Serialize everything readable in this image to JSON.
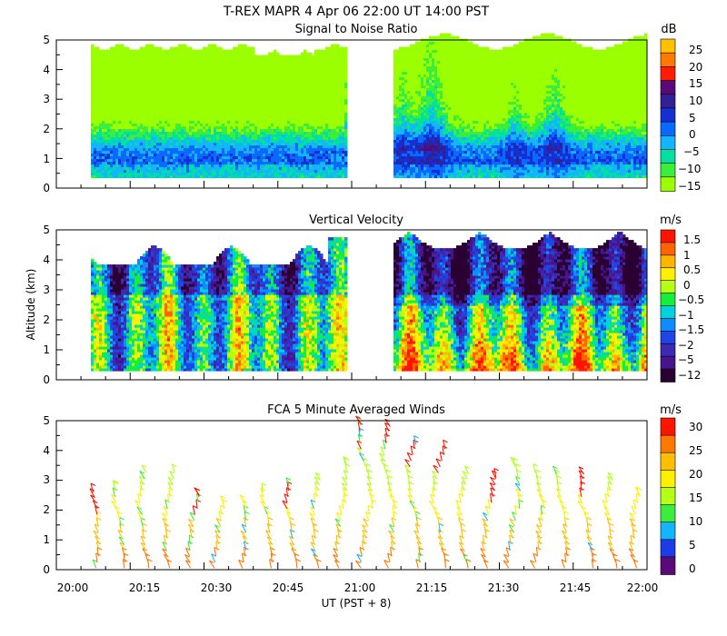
{
  "figure": {
    "title": "T-REX   MAPR   4 Apr 06   22:00 UT   14:00   PST"
  },
  "palette": {
    "snr": [
      "#9cff00",
      "#3cee3c",
      "#00e0a0",
      "#14b4ff",
      "#0a6aff",
      "#1430d2",
      "#322096",
      "#5a0a78",
      "#ff1e00",
      "#ff7800",
      "#ffc000"
    ],
    "velocity": [
      "#2a0032",
      "#46148c",
      "#3c2ab4",
      "#1e46e6",
      "#0f8cff",
      "#00d2dc",
      "#16ee3c",
      "#b4ff14",
      "#fff000",
      "#ffb400",
      "#ff6400",
      "#ff1400"
    ],
    "wind": [
      "#5a0a78",
      "#1e3ce6",
      "#14b4ff",
      "#3cee3c",
      "#b4ff14",
      "#fff000",
      "#ffbe00",
      "#ff7800",
      "#ff1400"
    ]
  },
  "chart_data": [
    {
      "id": "snr",
      "type": "heatmap",
      "title": "Signal to Noise Ratio",
      "xlabel": "",
      "ylabel": "",
      "xlim": [
        "20:00",
        "22:00"
      ],
      "ylim": [
        0,
        5
      ],
      "yticks": [
        "0",
        "1",
        "2",
        "3",
        "4",
        "5"
      ],
      "data_gap": [
        "20:59",
        "21:08"
      ],
      "colorbar": {
        "unit": "dB",
        "ticks": [
          "25",
          "20",
          "15",
          "10",
          "5",
          "0",
          "−5",
          "−10",
          "−15"
        ]
      }
    },
    {
      "id": "velocity",
      "type": "heatmap",
      "title": "Vertical Velocity",
      "xlabel": "",
      "ylabel": "Altitude (km)",
      "xlim": [
        "20:00",
        "22:00"
      ],
      "ylim": [
        0,
        5
      ],
      "yticks": [
        "0",
        "1",
        "2",
        "3",
        "4",
        "5"
      ],
      "data_gap": [
        "20:59",
        "21:08"
      ],
      "colorbar": {
        "unit": "m/s",
        "ticks": [
          "1.5",
          "1",
          "0.5",
          "0",
          "−0.5",
          "−1",
          "−1.5",
          "−2",
          "−5",
          "−12"
        ]
      }
    },
    {
      "id": "winds",
      "type": "scatter",
      "title": "FCA 5 Minute Averaged Winds",
      "xlabel": "UT  (PST + 8)",
      "ylabel": "",
      "xlim": [
        "20:00",
        "22:00"
      ],
      "ylim": [
        0,
        5
      ],
      "yticks": [
        "0",
        "1",
        "2",
        "3",
        "4",
        "5"
      ],
      "xticks": [
        "20:00",
        "20:15",
        "20:30",
        "20:45",
        "21:00",
        "21:15",
        "21:30",
        "21:45",
        "22:00"
      ],
      "barb_times_min": [
        8,
        13,
        18,
        23,
        28,
        33,
        38,
        43,
        48,
        53,
        58,
        63,
        68,
        73,
        78,
        83,
        88,
        93,
        98,
        103,
        108,
        113,
        118
      ],
      "top_altitude_km": [
        2.6,
        2.7,
        3.3,
        3.3,
        2.5,
        2.2,
        2.3,
        2.6,
        2.8,
        3.0,
        3.5,
        4.9,
        4.8,
        4.2,
        4.1,
        3.2,
        3.1,
        3.5,
        3.3,
        3.2,
        3.2,
        3.0,
        2.5
      ],
      "colorbar": {
        "unit": "m/s",
        "ticks": [
          "30",
          "25",
          "20",
          "15",
          "10",
          "5",
          "0"
        ]
      }
    }
  ]
}
